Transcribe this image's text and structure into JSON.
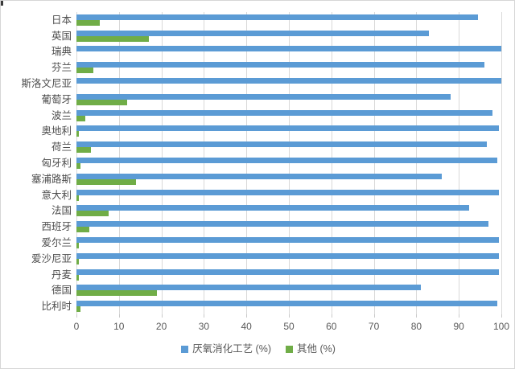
{
  "chart_data": {
    "type": "bar",
    "orientation": "horizontal",
    "title": "",
    "xlabel": "",
    "ylabel": "",
    "categories": [
      "日本",
      "英国",
      "瑞典",
      "芬兰",
      "斯洛文尼亚",
      "葡萄牙",
      "波兰",
      "奥地利",
      "荷兰",
      "匈牙利",
      "塞浦路斯",
      "意大利",
      "法国",
      "西班牙",
      "爱尔兰",
      "爱沙尼亚",
      "丹麦",
      "德国",
      "比利时"
    ],
    "series": [
      {
        "name": "厌氧消化工艺 (%)",
        "color": "#5b9bd5",
        "values": [
          94.5,
          83,
          100,
          96,
          100,
          88,
          98,
          99.5,
          96.5,
          99,
          86,
          99.5,
          92.5,
          97,
          99.5,
          99.5,
          99.5,
          81,
          99
        ]
      },
      {
        "name": "其他 (%)",
        "color": "#70ad47",
        "values": [
          5.5,
          17,
          0,
          4,
          0,
          12,
          2,
          0.5,
          3.5,
          1,
          14,
          0.5,
          7.5,
          3,
          0.5,
          0.5,
          0.5,
          19,
          1
        ]
      }
    ],
    "xlim": [
      0,
      100
    ],
    "xticks": [
      0,
      10,
      20,
      30,
      40,
      50,
      60,
      70,
      80,
      90,
      100
    ],
    "grid": "vertical",
    "gridline_color": "#d9d9d9",
    "legend_position": "bottom",
    "text_color": "#595959"
  },
  "legend": {
    "items": [
      {
        "label": "厌氧消化工艺 (%)",
        "color": "#5b9bd5"
      },
      {
        "label": "其他 (%)",
        "color": "#70ad47"
      }
    ]
  },
  "layout_values": {
    "note": ""
  }
}
